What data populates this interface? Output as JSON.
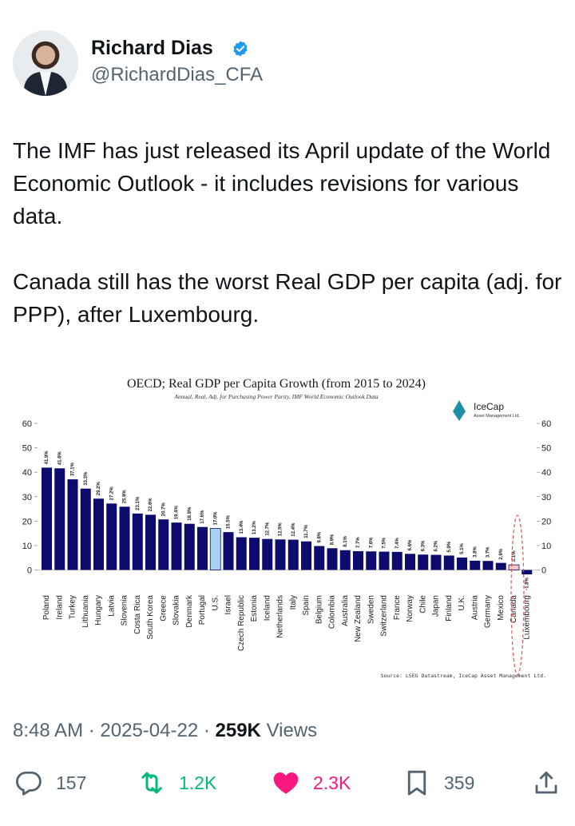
{
  "author": {
    "name": "Richard Dias",
    "handle": "@RichardDias_CFA"
  },
  "tweet": {
    "paragraphs": [
      "The IMF has just released its April update of the World Economic Outlook - it includes revisions for various data.",
      "Canada still has the worst Real GDP per capita (adj. for PPP), after Luxembourg."
    ]
  },
  "meta": {
    "time": "8:48 AM",
    "date": "2025-04-22",
    "views": "259K",
    "views_label": "Views",
    "separator": "·"
  },
  "actions": {
    "replies": "157",
    "reposts": "1.2K",
    "likes": "2.3K",
    "bookmarks": "359"
  },
  "colors": {
    "bar": "#0c0c6e",
    "us_bar": "#a9d2f2",
    "canada_bar": "#f5c6c6",
    "canada_highlight": "#e05252",
    "verified": "#1d9bf0",
    "repost": "#00ba7c",
    "like": "#f91880"
  },
  "chart_data": {
    "type": "bar",
    "title": "OECD; Real GDP per Capita Growth (from 2015 to 2024)",
    "subtitle": "Annual, Real, Adj. for Purchasing Power Parity, IMF World Economic Outlook Data",
    "logo": "IceCap",
    "logo_sub": "Asset Management Ltd.",
    "source": "Source: LSEG Datastream, IceCap Asset Management Ltd.",
    "ylim": [
      0,
      60
    ],
    "yticks": [
      0,
      10,
      20,
      30,
      40,
      50,
      60
    ],
    "grid": false,
    "categories": [
      "Poland",
      "Ireland",
      "Turkey",
      "Lithuania",
      "Hungary",
      "Latvia",
      "Slovenia",
      "Costa Rica",
      "South Korea",
      "Greece",
      "Slovakia",
      "Denmark",
      "Portugal",
      "U.S.",
      "Israel",
      "Czech Republic",
      "Estonia",
      "Iceland",
      "Netherlands",
      "Italy",
      "Spain",
      "Belgium",
      "Colombia",
      "Australia",
      "New Zealand",
      "Sweden",
      "Switzerland",
      "France",
      "Norway",
      "Chile",
      "Japan",
      "Finland",
      "U.K.",
      "Austria",
      "Germany",
      "Mexico",
      "Canada",
      "Luxembourg"
    ],
    "values": [
      41.9,
      41.6,
      37.1,
      33.3,
      29.2,
      27.2,
      25.9,
      23.1,
      22.6,
      20.7,
      19.4,
      18.9,
      17.6,
      17.0,
      15.5,
      13.4,
      13.2,
      12.7,
      12.5,
      12.4,
      11.7,
      9.8,
      8.9,
      8.1,
      7.7,
      7.6,
      7.5,
      7.4,
      6.6,
      6.3,
      6.2,
      5.9,
      5.1,
      3.8,
      3.7,
      2.9,
      2.1,
      -1.8
    ],
    "data_labels": [
      "41.9%",
      "41.6%",
      "37.1%",
      "33.3%",
      "29.2%",
      "27.2%",
      "25.9%",
      "23.1%",
      "22.6%",
      "20.7%",
      "19.4%",
      "18.9%",
      "17.6%",
      "17.0%",
      "15.5%",
      "13.4%",
      "13.2%",
      "12.7%",
      "12.5%",
      "12.4%",
      "11.7%",
      "9.8%",
      "8.9%",
      "8.1%",
      "7.7%",
      "7.6%",
      "7.5%",
      "7.4%",
      "6.6%",
      "6.3%",
      "6.2%",
      "5.9%",
      "5.1%",
      "3.8%",
      "3.7%",
      "2.9%",
      "2.1%",
      "-1.8%"
    ],
    "highlight": {
      "U.S.": "us_bar",
      "Canada": "canada_bar"
    }
  }
}
